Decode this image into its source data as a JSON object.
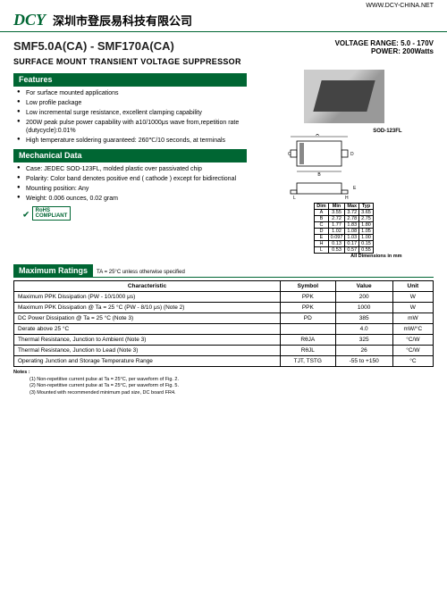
{
  "url": "WWW.DCY-CHINA.NET",
  "logo": "DCY",
  "company": "深圳市登辰易科技有限公司",
  "part_title": "SMF5.0A(CA) - SMF170A(CA)",
  "voltage_label": "VOLTAGE  RANGE:",
  "voltage_value": "5.0 - 170V",
  "power_label": "POWER:",
  "power_value": "200Watts",
  "subtitle": "SURFACE MOUNT TRANSIENT VOLTAGE SUPPRESSOR",
  "features_h": "Features",
  "features": [
    "For surface mounted applications",
    "Low profile package",
    "Low incremental surge resistance, excellent clamping capability",
    "200W peak pulse power capability with a10/1000μs wave from,repetition rate (dutycycle):0.01%",
    "High temperature soldering guaranteed: 260℃/10 seconds, at terminals"
  ],
  "mech_h": "Mechanical Data",
  "mech": [
    "Case: JEDEC SOD-123FL, molded plastic over passivated chip",
    "Polarity: Color band denotes positive end ( cathode ) except for bidirectional",
    "Mounting position: Any",
    "Weight: 0.006 ounces, 0.02 gram"
  ],
  "rohs1": "RoHS",
  "rohs2": "COMPLIANT",
  "dim_title": "SOD-123FL",
  "dim_table": {
    "headers": [
      "Dim",
      "Min",
      "Max",
      "Typ"
    ],
    "rows": [
      [
        "A",
        "3.55",
        "3.72",
        "3.65"
      ],
      [
        "B",
        "2.72",
        "2.78",
        "2.75"
      ],
      [
        "C",
        "1.77",
        "1.83",
        "1.80"
      ],
      [
        "D",
        "1.02",
        "1.08",
        "1.05"
      ],
      [
        "E",
        "0.097",
        "1.03",
        "1.00"
      ],
      [
        "H",
        "0.13",
        "0.17",
        "0.15"
      ],
      [
        "L",
        "0.53",
        "0.57",
        "0.55"
      ]
    ],
    "caption": "All Dimensions in mm"
  },
  "max_h": "Maximum Ratings",
  "max_cond": "TA = 25°C unless otherwise specified",
  "max_table": {
    "headers": [
      "Characteristic",
      "Symbol",
      "Value",
      "Unit"
    ],
    "rows": [
      [
        "Maximum PPK Dissipation (PW - 10/1000 μs)",
        "PPK",
        "200",
        "W"
      ],
      [
        "Maximum PPK Dissipation @ Ta = 25 °C (PW - 8/10 μs)   (Note 2)",
        "PPK",
        "1000",
        "W"
      ],
      [
        "DC Power Dissipation @ Ta = 25 °C    (Note 3)",
        "PD",
        "385",
        "mW"
      ],
      [
        "Derate above 25 °C",
        "",
        "4.0",
        "mW/°C"
      ],
      [
        "Thermal Resistance, Junction to Ambient  (Note 3)",
        "RθJA",
        "325",
        "°C/W"
      ],
      [
        "Thermal Resistance, Junction to Lead  (Note 3)",
        "RθJL",
        "26",
        "°C/W"
      ],
      [
        "Operating Junction and Storage Temperature Range",
        "TJT, TSTG",
        "-55 to +150",
        "°C"
      ]
    ]
  },
  "notes_h": "Notes :",
  "notes": [
    "(1) Non-repetitive current pulse at Ta = 25°C, per waveform of Fig. 2.",
    "(2) Non-repetitive current pulse at Ta = 25°C, per waveform of Fig. 5.",
    "(3) Mounted with recommended minimum pad size, DC board FR4."
  ]
}
